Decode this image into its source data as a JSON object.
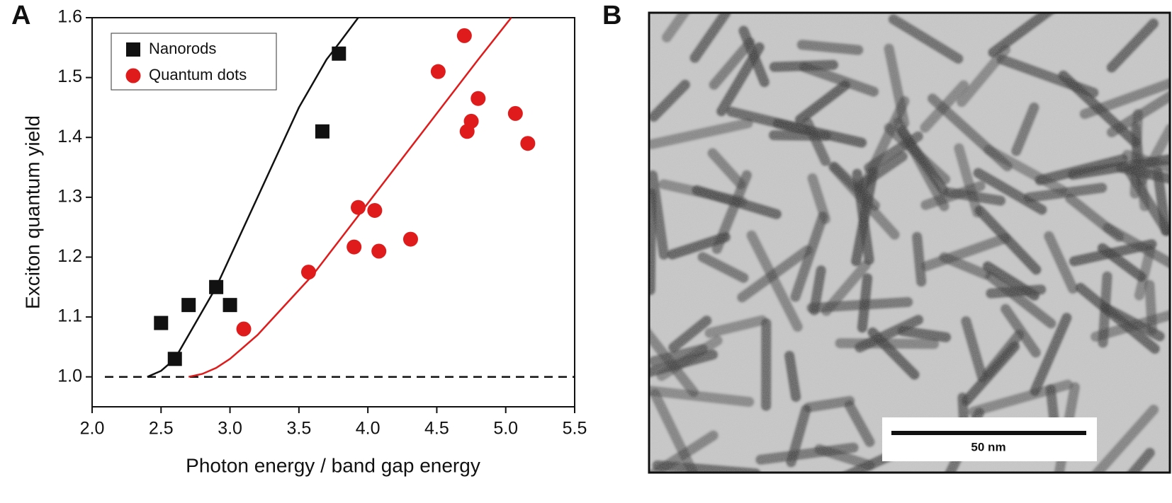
{
  "panel_labels": [
    "A",
    "B"
  ],
  "image": {
    "scale_bar_label": "50 nm"
  },
  "chart_data": {
    "type": "scatter",
    "x_label": "Photon energy / band gap energy",
    "y_label": "Exciton quantum yield",
    "xlim": [
      2.0,
      5.5
    ],
    "ylim": [
      0.95,
      1.6
    ],
    "xticks": [
      {
        "value": 2.0,
        "label": "2.0"
      },
      2.5,
      {
        "value": 3.0,
        "label": "3.0"
      },
      3.5,
      {
        "value": 4.0,
        "label": "4.0"
      },
      4.5,
      {
        "value": 5.0,
        "label": "5.0"
      },
      5.5
    ],
    "yticks": [
      {
        "value": 1.0,
        "label": "1.0"
      },
      1.1,
      1.2,
      1.3,
      1.4,
      1.5,
      1.6
    ],
    "reference_line": 1.0,
    "legend": "upper left",
    "series": [
      {
        "name": "Nanorods",
        "color": "#111111",
        "marker": "square",
        "x": [
          2.5,
          2.6,
          2.7,
          2.9,
          3.0,
          3.67,
          3.79
        ],
        "values": [
          1.09,
          1.03,
          1.12,
          1.15,
          1.12,
          1.41,
          1.54
        ]
      },
      {
        "name": "Quantum dots",
        "color": "#e01b1b",
        "marker": "circle",
        "x": [
          3.1,
          3.57,
          3.9,
          3.93,
          4.05,
          4.08,
          4.31,
          4.51,
          4.7,
          4.72,
          4.75,
          4.8,
          5.07,
          5.16
        ],
        "values": [
          1.08,
          1.175,
          1.217,
          1.283,
          1.278,
          1.21,
          1.23,
          1.51,
          1.57,
          1.41,
          1.427,
          1.465,
          1.44,
          1.39
        ]
      }
    ],
    "curves": [
      {
        "color": "#111111",
        "x": [
          2.4,
          2.5,
          2.6,
          2.7,
          2.8,
          2.9,
          3.0,
          3.1,
          3.2,
          3.3,
          3.4,
          3.5,
          3.6,
          3.7,
          3.8,
          3.93
        ],
        "values": [
          1.0,
          1.01,
          1.03,
          1.07,
          1.11,
          1.15,
          1.2,
          1.25,
          1.3,
          1.35,
          1.4,
          1.45,
          1.49,
          1.53,
          1.56,
          1.6
        ]
      },
      {
        "color": "#e01b1b",
        "x": [
          2.7,
          2.8,
          2.9,
          3.0,
          3.1,
          3.2,
          3.4,
          3.6,
          3.8,
          4.0,
          4.2,
          4.4,
          4.6,
          4.8,
          5.04
        ],
        "values": [
          1.0,
          1.005,
          1.015,
          1.03,
          1.05,
          1.07,
          1.12,
          1.17,
          1.23,
          1.29,
          1.35,
          1.41,
          1.47,
          1.53,
          1.6
        ]
      }
    ]
  }
}
